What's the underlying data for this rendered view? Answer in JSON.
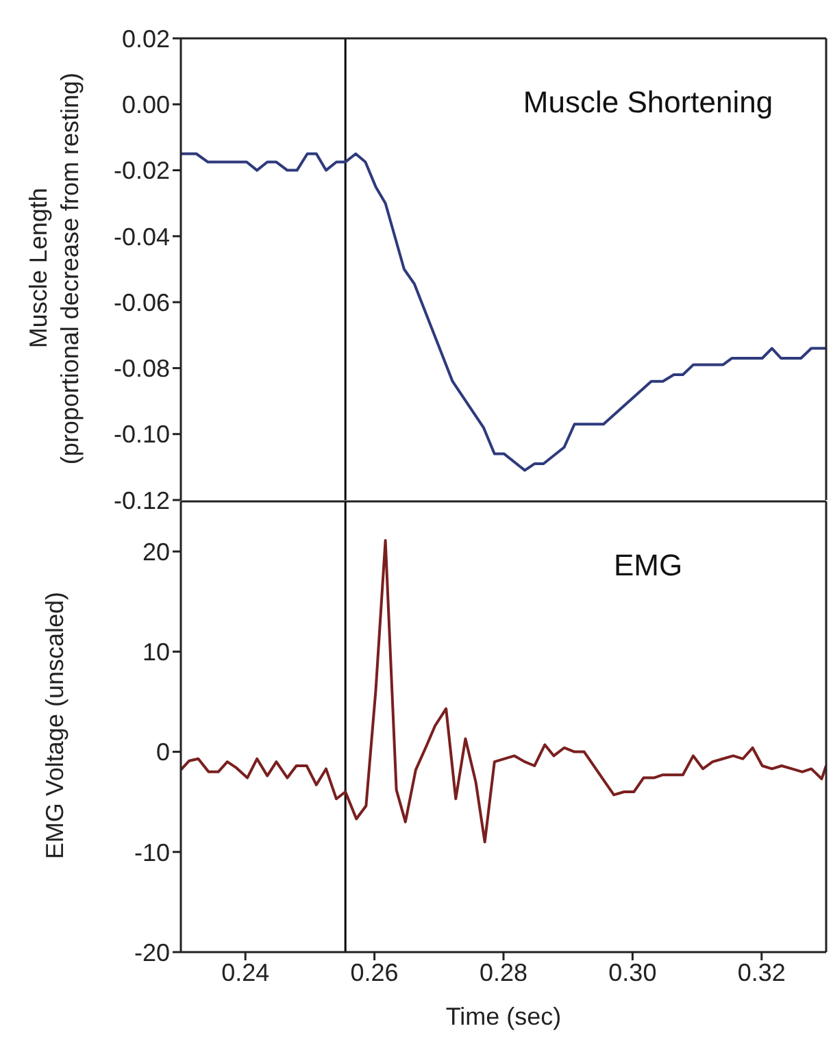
{
  "chart_data": [
    {
      "type": "line",
      "ylabel": "Muscle Length\n(proportional decrease from resting)",
      "annotations": [
        "Muscle Shortening"
      ],
      "xlim": [
        0.23,
        0.33
      ],
      "ylim": [
        -0.12,
        0.02
      ],
      "yticks": [
        0.02,
        {
          "value": 0,
          "label": "0.00"
        },
        -0.02,
        -0.04,
        -0.06,
        -0.08,
        {
          "value": -0.1,
          "label": "-0.10"
        },
        -0.12
      ],
      "tick_labels": "y",
      "ref_lines": [
        {
          "axis": "x",
          "value": 0.2555,
          "color": "#000000"
        }
      ],
      "series": [
        {
          "color": "#2e3a7c",
          "x": [
            0.23,
            0.2324,
            0.2342,
            0.2402,
            0.2418,
            0.2434,
            0.2448,
            0.2465,
            0.248,
            0.2496,
            0.251,
            0.2525,
            0.2541,
            0.2555,
            0.2571,
            0.2586,
            0.2602,
            0.2617,
            0.2646,
            0.2662,
            0.2721,
            0.2769,
            0.2786,
            0.2801,
            0.2833,
            0.2848,
            0.2862,
            0.2894,
            0.291,
            0.2955,
            0.3029,
            0.3047,
            0.3064,
            0.3078,
            0.3094,
            0.314,
            0.3154,
            0.3201,
            0.3216,
            0.323,
            0.3261,
            0.3277,
            0.33
          ],
          "values": [
            -0.015,
            -0.015,
            -0.0175,
            -0.0175,
            -0.02,
            -0.0175,
            -0.0175,
            -0.02,
            -0.02,
            -0.015,
            -0.015,
            -0.02,
            -0.0175,
            -0.0175,
            -0.015,
            -0.0175,
            -0.025,
            -0.03,
            -0.05,
            -0.0545,
            -0.084,
            -0.098,
            -0.106,
            -0.106,
            -0.111,
            -0.109,
            -0.109,
            -0.104,
            -0.097,
            -0.097,
            -0.084,
            -0.084,
            -0.082,
            -0.082,
            -0.079,
            -0.079,
            -0.077,
            -0.077,
            -0.074,
            -0.077,
            -0.077,
            -0.074,
            -0.074
          ]
        }
      ]
    },
    {
      "type": "line",
      "xlabel": "Time (sec)",
      "ylabel": "EMG Voltage (unscaled)",
      "annotations": [
        "EMG"
      ],
      "xlim": [
        0.23,
        0.33
      ],
      "xticks": [
        0.24,
        0.26,
        0.28,
        {
          "value": 0.3,
          "label": "0.30"
        },
        0.32
      ],
      "ylim": [
        -20,
        25
      ],
      "yticks": [
        -20,
        -10,
        0,
        10,
        20
      ],
      "ref_lines": [
        {
          "axis": "x",
          "value": 0.2555,
          "color": "#000000"
        }
      ],
      "series": [
        {
          "color": "#7a1f1f",
          "x": [
            0.23,
            0.2313,
            0.2327,
            0.2343,
            0.2358,
            0.2372,
            0.2386,
            0.2403,
            0.2418,
            0.2434,
            0.2448,
            0.2465,
            0.2479,
            0.2495,
            0.251,
            0.2525,
            0.2541,
            0.2555,
            0.2572,
            0.2587,
            0.2602,
            0.2617,
            0.2634,
            0.2648,
            0.2664,
            0.268,
            0.2694,
            0.2711,
            0.2726,
            0.2741,
            0.2757,
            0.2771,
            0.2786,
            0.2801,
            0.2817,
            0.2833,
            0.2848,
            0.2864,
            0.2878,
            0.2894,
            0.291,
            0.2925,
            0.294,
            0.2957,
            0.2971,
            0.2987,
            0.3002,
            0.3017,
            0.3033,
            0.3047,
            0.3064,
            0.3078,
            0.3094,
            0.3109,
            0.3124,
            0.314,
            0.3156,
            0.3171,
            0.3186,
            0.3201,
            0.3216,
            0.3231,
            0.3247,
            0.3263,
            0.3277,
            0.3293,
            0.33
          ],
          "values": [
            -1.8,
            -0.9,
            -0.7,
            -2,
            -2,
            -1,
            -1.6,
            -2.6,
            -0.7,
            -2.4,
            -1,
            -2.6,
            -1.4,
            -1.4,
            -3.3,
            -1.7,
            -4.7,
            -4,
            -6.7,
            -5.4,
            6.1,
            21.1,
            -3.8,
            -7,
            -1.8,
            0.5,
            2.6,
            4.3,
            -4.7,
            1.3,
            -3,
            -9,
            -1,
            -0.7,
            -0.4,
            -1,
            -1.4,
            0.7,
            -0.4,
            0.4,
            0,
            0,
            -1.4,
            -3,
            -4.3,
            -4,
            -4,
            -2.6,
            -2.6,
            -2.3,
            -2.3,
            -2.3,
            -0.4,
            -1.7,
            -1,
            -0.7,
            -0.4,
            -0.7,
            0.4,
            -1.4,
            -1.7,
            -1.4,
            -1.7,
            -2,
            -1.7,
            -2.7,
            -1.4
          ]
        }
      ]
    }
  ]
}
